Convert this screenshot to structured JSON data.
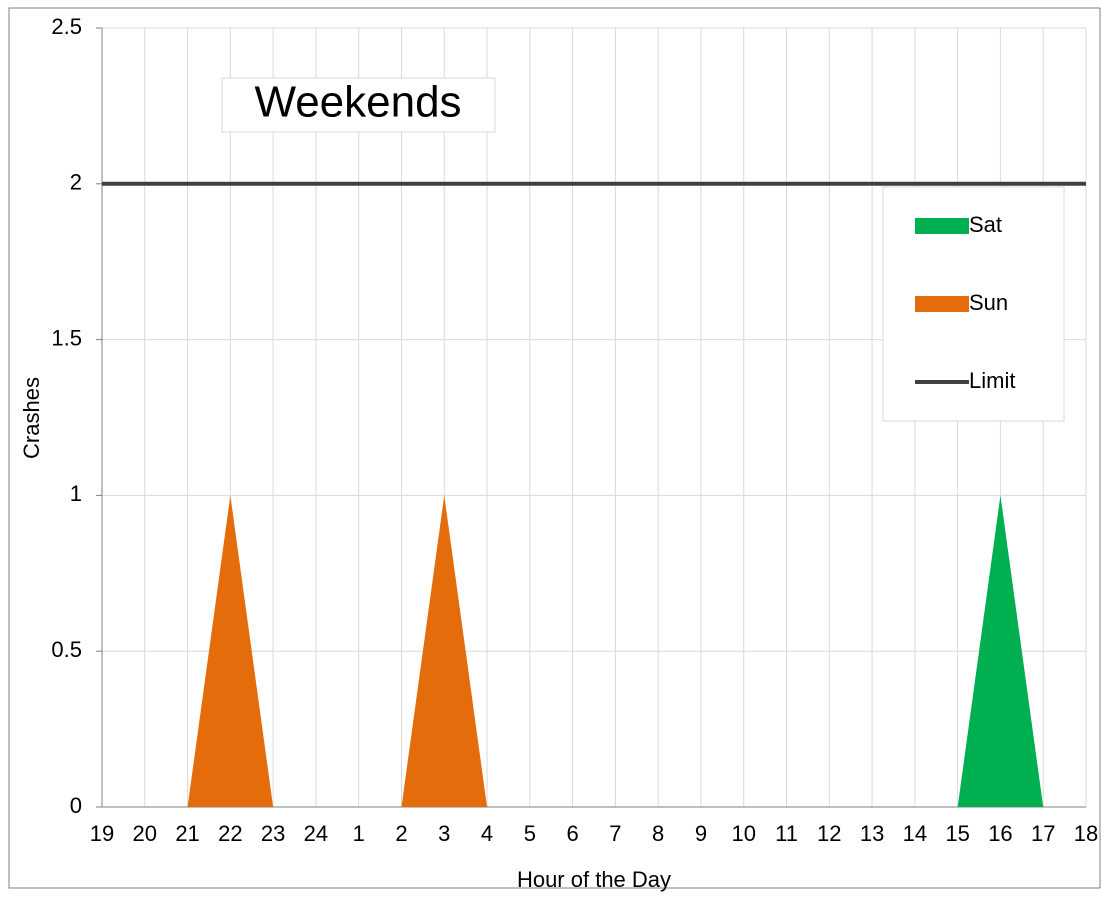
{
  "chart_data": {
    "type": "area",
    "title": "Weekends",
    "x_label": "Hour of the Day",
    "y_label": "Crashes",
    "categories": [
      "19",
      "20",
      "21",
      "22",
      "23",
      "24",
      "1",
      "2",
      "3",
      "4",
      "5",
      "6",
      "7",
      "8",
      "9",
      "10",
      "11",
      "12",
      "13",
      "14",
      "15",
      "16",
      "17",
      "18"
    ],
    "series": [
      {
        "name": "Sat",
        "color": "#00b050",
        "type": "area",
        "values": [
          0,
          0,
          0,
          0,
          0,
          0,
          0,
          0,
          0,
          0,
          0,
          0,
          0,
          0,
          0,
          0,
          0,
          0,
          0,
          0,
          0,
          1,
          0,
          0
        ]
      },
      {
        "name": "Sun",
        "color": "#e46c0a",
        "type": "area",
        "values": [
          0,
          0,
          0,
          1,
          0,
          0,
          0,
          0,
          1,
          0,
          0,
          0,
          0,
          0,
          0,
          0,
          0,
          0,
          0,
          0,
          0,
          0,
          0,
          0
        ]
      },
      {
        "name": "Limit",
        "color": "#404040",
        "type": "line",
        "values": [
          2,
          2,
          2,
          2,
          2,
          2,
          2,
          2,
          2,
          2,
          2,
          2,
          2,
          2,
          2,
          2,
          2,
          2,
          2,
          2,
          2,
          2,
          2,
          2
        ]
      }
    ],
    "ylim": [
      0,
      2.5
    ],
    "yticks": [
      0,
      0.5,
      1,
      1.5,
      2,
      2.5
    ],
    "grid": true,
    "legend": "upper right"
  }
}
